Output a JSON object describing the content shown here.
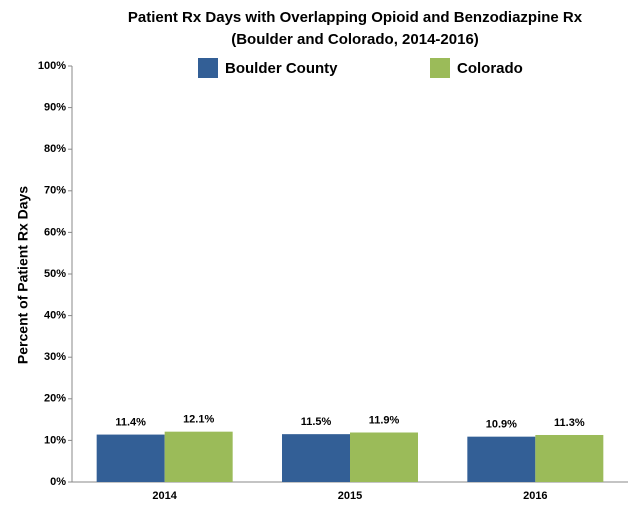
{
  "chart_data": {
    "type": "bar",
    "title": "Patient Rx Days with Overlapping Opioid and Benzodiazpine Rx",
    "subtitle": "(Boulder and Colorado, 2014-2016)",
    "y_label": "Percent of Patient Rx Days",
    "categories": [
      "2014",
      "2015",
      "2016"
    ],
    "series": [
      {
        "name": "Boulder County",
        "color": "#335f96",
        "values": [
          11.4,
          11.5,
          10.9
        ],
        "value_labels": [
          "11.4%",
          "11.5%",
          "10.9%"
        ]
      },
      {
        "name": "Colorado",
        "color": "#9bbb59",
        "values": [
          12.1,
          11.9,
          11.3
        ],
        "value_labels": [
          "12.1%",
          "11.9%",
          "11.3%"
        ]
      }
    ],
    "ylim": [
      0,
      100
    ],
    "yticks": [
      {
        "value": 0,
        "label": "0%"
      },
      {
        "value": 10,
        "label": "10%"
      },
      {
        "value": 20,
        "label": "20%"
      },
      {
        "value": 30,
        "label": "30%"
      },
      {
        "value": 40,
        "label": "40%"
      },
      {
        "value": 50,
        "label": "50%"
      },
      {
        "value": 60,
        "label": "60%"
      },
      {
        "value": 70,
        "label": "70%"
      },
      {
        "value": 80,
        "label": "80%"
      },
      {
        "value": 90,
        "label": "90%"
      },
      {
        "value": 100,
        "label": "100%"
      }
    ],
    "grid": false,
    "legend": "top"
  }
}
